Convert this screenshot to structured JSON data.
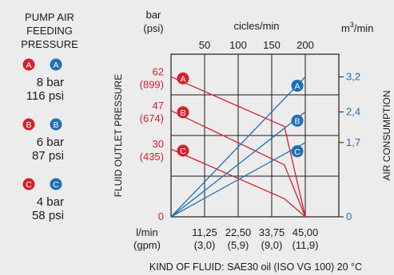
{
  "legend": {
    "heading": [
      "PUMP AIR",
      "FEEDING",
      "PRESSURE"
    ],
    "groups": [
      {
        "fluid_mark": "A",
        "air_mark": "A",
        "bar": "8 bar",
        "psi": "116 psi"
      },
      {
        "fluid_mark": "B",
        "air_mark": "B",
        "bar": "6 bar",
        "psi": "87  psi"
      },
      {
        "fluid_mark": "C",
        "air_mark": "C",
        "bar": "4 bar",
        "psi": "58  psi"
      }
    ]
  },
  "colors": {
    "fluid": "#d6202e",
    "air": "#1f6fb5",
    "text": "#1a1a1a",
    "grid": "#1a1a1a",
    "bg": "#ececec"
  },
  "chart_data": {
    "type": "line",
    "left_unit": [
      "bar",
      "(psi)"
    ],
    "top_axis_label": "cicles/min",
    "right_unit": "m³/min",
    "left_axis_label": "FLUID OUTLET PRESSURE",
    "right_axis_label": "AIR CONSUMPTION",
    "bottom_unit": [
      "l/min",
      "(gpm)"
    ],
    "footer": "KIND OF FLUID: SAE30 oil (ISO VG 100) 20 °C",
    "xlim": [
      0,
      56.25
    ],
    "x_ticks": [
      {
        "x": 11.25,
        "label": "11,25",
        "sub": "(3,0)"
      },
      {
        "x": 22.5,
        "label": "22,50",
        "sub": "(5,9)"
      },
      {
        "x": 33.75,
        "label": "33,75",
        "sub": "(9,0)"
      },
      {
        "x": 45,
        "label": "45,00",
        "sub": "(11,9)"
      }
    ],
    "top_ticks": [
      {
        "x": 11.25,
        "label": "50"
      },
      {
        "x": 22.5,
        "label": "100"
      },
      {
        "x": 33.75,
        "label": "150"
      },
      {
        "x": 45,
        "label": "200"
      }
    ],
    "left_ylim": [
      0,
      72
    ],
    "left_ticks": [
      {
        "y": 0,
        "label": "0",
        "sub": ""
      },
      {
        "y": 30,
        "label": "30",
        "sub": "(435)"
      },
      {
        "y": 47,
        "label": "47",
        "sub": "(674)"
      },
      {
        "y": 62,
        "label": "62",
        "sub": "(899)"
      }
    ],
    "right_ylim": [
      0,
      3.72
    ],
    "right_ticks": [
      {
        "y": 0,
        "label": "0"
      },
      {
        "y": 1.7,
        "label": "1,7"
      },
      {
        "y": 2.4,
        "label": "2,4"
      },
      {
        "y": 3.2,
        "label": "3,2"
      }
    ],
    "grid_rows_left": [
      0,
      18,
      36,
      54,
      72
    ],
    "series": [
      {
        "name": "A",
        "axis": "left",
        "values": [
          [
            0,
            62
          ],
          [
            38,
            40
          ],
          [
            45,
            0
          ]
        ]
      },
      {
        "name": "B",
        "axis": "left",
        "values": [
          [
            0,
            47
          ],
          [
            38,
            23
          ],
          [
            45,
            0
          ]
        ]
      },
      {
        "name": "C",
        "axis": "left",
        "values": [
          [
            0,
            30
          ],
          [
            38,
            8
          ],
          [
            45,
            0
          ]
        ]
      },
      {
        "name": "A",
        "axis": "right",
        "values": [
          [
            0,
            0
          ],
          [
            45,
            3.2
          ]
        ]
      },
      {
        "name": "B",
        "axis": "right",
        "values": [
          [
            0,
            0
          ],
          [
            45,
            2.4
          ]
        ]
      },
      {
        "name": "C",
        "axis": "right",
        "values": [
          [
            0,
            0
          ],
          [
            45,
            1.7
          ]
        ]
      }
    ]
  }
}
